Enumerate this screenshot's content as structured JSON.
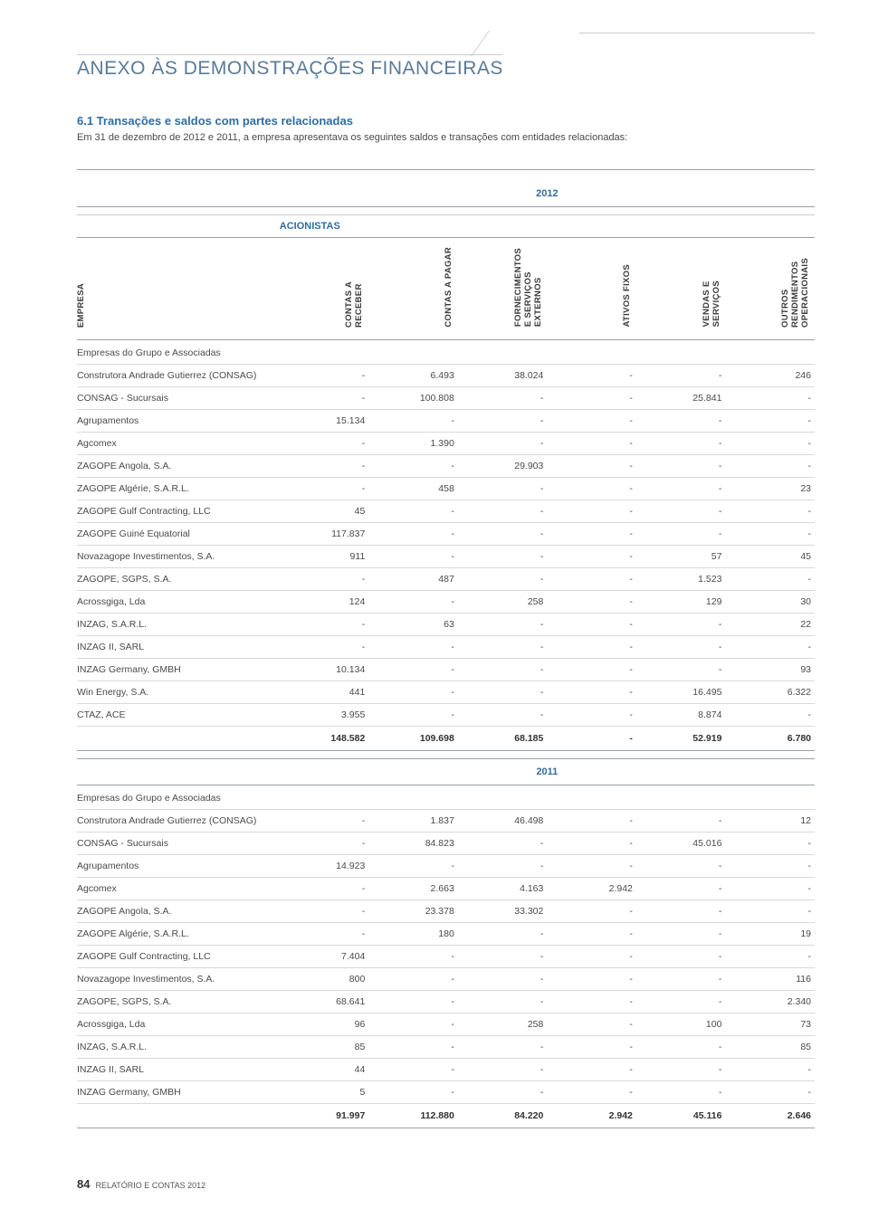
{
  "doc_title": "ANEXO ÀS DEMONSTRAÇÕES FINANCEIRAS",
  "section_no_title": "6.1  Transações e saldos com partes relacionadas",
  "section_desc": "Em 31 de dezembro de 2012 e 2011, a empresa apresentava os seguintes saldos e transações com entidades relacionadas:",
  "acionistas_label": "ACIONISTAS",
  "group_label": "Empresas do Grupo e Associadas",
  "year_2012": "2012",
  "year_2011": "2011",
  "columns": {
    "empresa": "EMPRESA",
    "c1": "CONTAS A\nRECEBER",
    "c2": "CONTAS A PAGAR",
    "c3": "FORNECIMENTOS\nE SERVIÇOS\nEXTERNOS",
    "c4": "ATIVOS FIXOS",
    "c5": "VENDAS E\nSERVIÇOS",
    "c6": "OUTROS\nRENDIMENTOS\nOPERACIONAIS"
  },
  "rows_2012": [
    {
      "label": "Construtora Andrade Gutierrez (CONSAG)",
      "v": [
        "-",
        "6.493",
        "38.024",
        "-",
        "-",
        "246"
      ]
    },
    {
      "label": "CONSAG - Sucursais",
      "v": [
        "-",
        "100.808",
        "-",
        "-",
        "25.841",
        "-"
      ]
    },
    {
      "label": "Agrupamentos",
      "v": [
        "15.134",
        "-",
        "-",
        "-",
        "-",
        "-"
      ]
    },
    {
      "label": "Agcomex",
      "v": [
        "-",
        "1.390",
        "-",
        "-",
        "-",
        "-"
      ]
    },
    {
      "label": "ZAGOPE Angola, S.A.",
      "v": [
        "-",
        "-",
        "29.903",
        "-",
        "-",
        "-"
      ]
    },
    {
      "label": "ZAGOPE Algérie, S.A.R.L.",
      "v": [
        "-",
        "458",
        "-",
        "-",
        "-",
        "23"
      ]
    },
    {
      "label": "ZAGOPE Gulf Contracting, LLC",
      "v": [
        "45",
        "-",
        "-",
        "-",
        "-",
        "-"
      ]
    },
    {
      "label": "ZAGOPE Guiné Equatorial",
      "v": [
        "117.837",
        "-",
        "-",
        "-",
        "-",
        "-"
      ]
    },
    {
      "label": "Novazagope Investimentos, S.A.",
      "v": [
        "911",
        "-",
        "-",
        "-",
        "57",
        "45"
      ]
    },
    {
      "label": "ZAGOPE, SGPS, S.A.",
      "v": [
        "-",
        "487",
        "-",
        "-",
        "1.523",
        "-"
      ]
    },
    {
      "label": "Acrossgiga, Lda",
      "v": [
        "124",
        "-",
        "258",
        "-",
        "129",
        "30"
      ]
    },
    {
      "label": "INZAG, S.A.R.L.",
      "v": [
        "-",
        "63",
        "-",
        "-",
        "-",
        "22"
      ]
    },
    {
      "label": "INZAG II, SARL",
      "v": [
        "-",
        "-",
        "-",
        "-",
        "-",
        "-"
      ]
    },
    {
      "label": "INZAG Germany, GMBH",
      "v": [
        "10.134",
        "-",
        "-",
        "-",
        "-",
        "93"
      ]
    },
    {
      "label": "Win Energy, S.A.",
      "v": [
        "441",
        "-",
        "-",
        "-",
        "16.495",
        "6.322"
      ]
    },
    {
      "label": "CTAZ, ACE",
      "v": [
        "3.955",
        "-",
        "-",
        "-",
        "8.874",
        "-"
      ]
    }
  ],
  "total_2012": [
    "148.582",
    "109.698",
    "68.185",
    "-",
    "52.919",
    "6.780"
  ],
  "rows_2011": [
    {
      "label": "Construtora Andrade Gutierrez (CONSAG)",
      "v": [
        "-",
        "1.837",
        "46.498",
        "-",
        "-",
        "12"
      ]
    },
    {
      "label": "CONSAG - Sucursais",
      "v": [
        "-",
        "84.823",
        "-",
        "-",
        "45.016",
        "-"
      ]
    },
    {
      "label": "Agrupamentos",
      "v": [
        "14.923",
        "-",
        "-",
        "-",
        "-",
        "-"
      ]
    },
    {
      "label": "Agcomex",
      "v": [
        "-",
        "2.663",
        "4.163",
        "2.942",
        "-",
        "-"
      ]
    },
    {
      "label": "ZAGOPE Angola, S.A.",
      "v": [
        "-",
        "23.378",
        "33.302",
        "-",
        "-",
        "-"
      ]
    },
    {
      "label": "ZAGOPE Algérie, S.A.R.L.",
      "v": [
        "-",
        "180",
        "-",
        "-",
        "-",
        "19"
      ]
    },
    {
      "label": "ZAGOPE Gulf Contracting, LLC",
      "v": [
        "7.404",
        "-",
        "-",
        "-",
        "-",
        "-"
      ]
    },
    {
      "label": "Novazagope Investimentos, S.A.",
      "v": [
        "800",
        "-",
        "-",
        "-",
        "-",
        "116"
      ]
    },
    {
      "label": "ZAGOPE, SGPS, S.A.",
      "v": [
        "68.641",
        "-",
        "-",
        "-",
        "-",
        "2.340"
      ]
    },
    {
      "label": "Acrossgiga, Lda",
      "v": [
        "96",
        "-",
        "258",
        "-",
        "100",
        "73"
      ]
    },
    {
      "label": "INZAG, S.A.R.L.",
      "v": [
        "85",
        "-",
        "-",
        "-",
        "-",
        "85"
      ]
    },
    {
      "label": "INZAG II, SARL",
      "v": [
        "44",
        "-",
        "-",
        "-",
        "-",
        "-"
      ]
    },
    {
      "label": "INZAG Germany, GMBH",
      "v": [
        "5",
        "-",
        "-",
        "-",
        "-",
        "-"
      ]
    }
  ],
  "total_2011": [
    "91.997",
    "112.880",
    "84.220",
    "2.942",
    "45.116",
    "2.646"
  ],
  "footer": {
    "page": "84",
    "text": "RELATÓRIO E CONTAS 2012"
  }
}
